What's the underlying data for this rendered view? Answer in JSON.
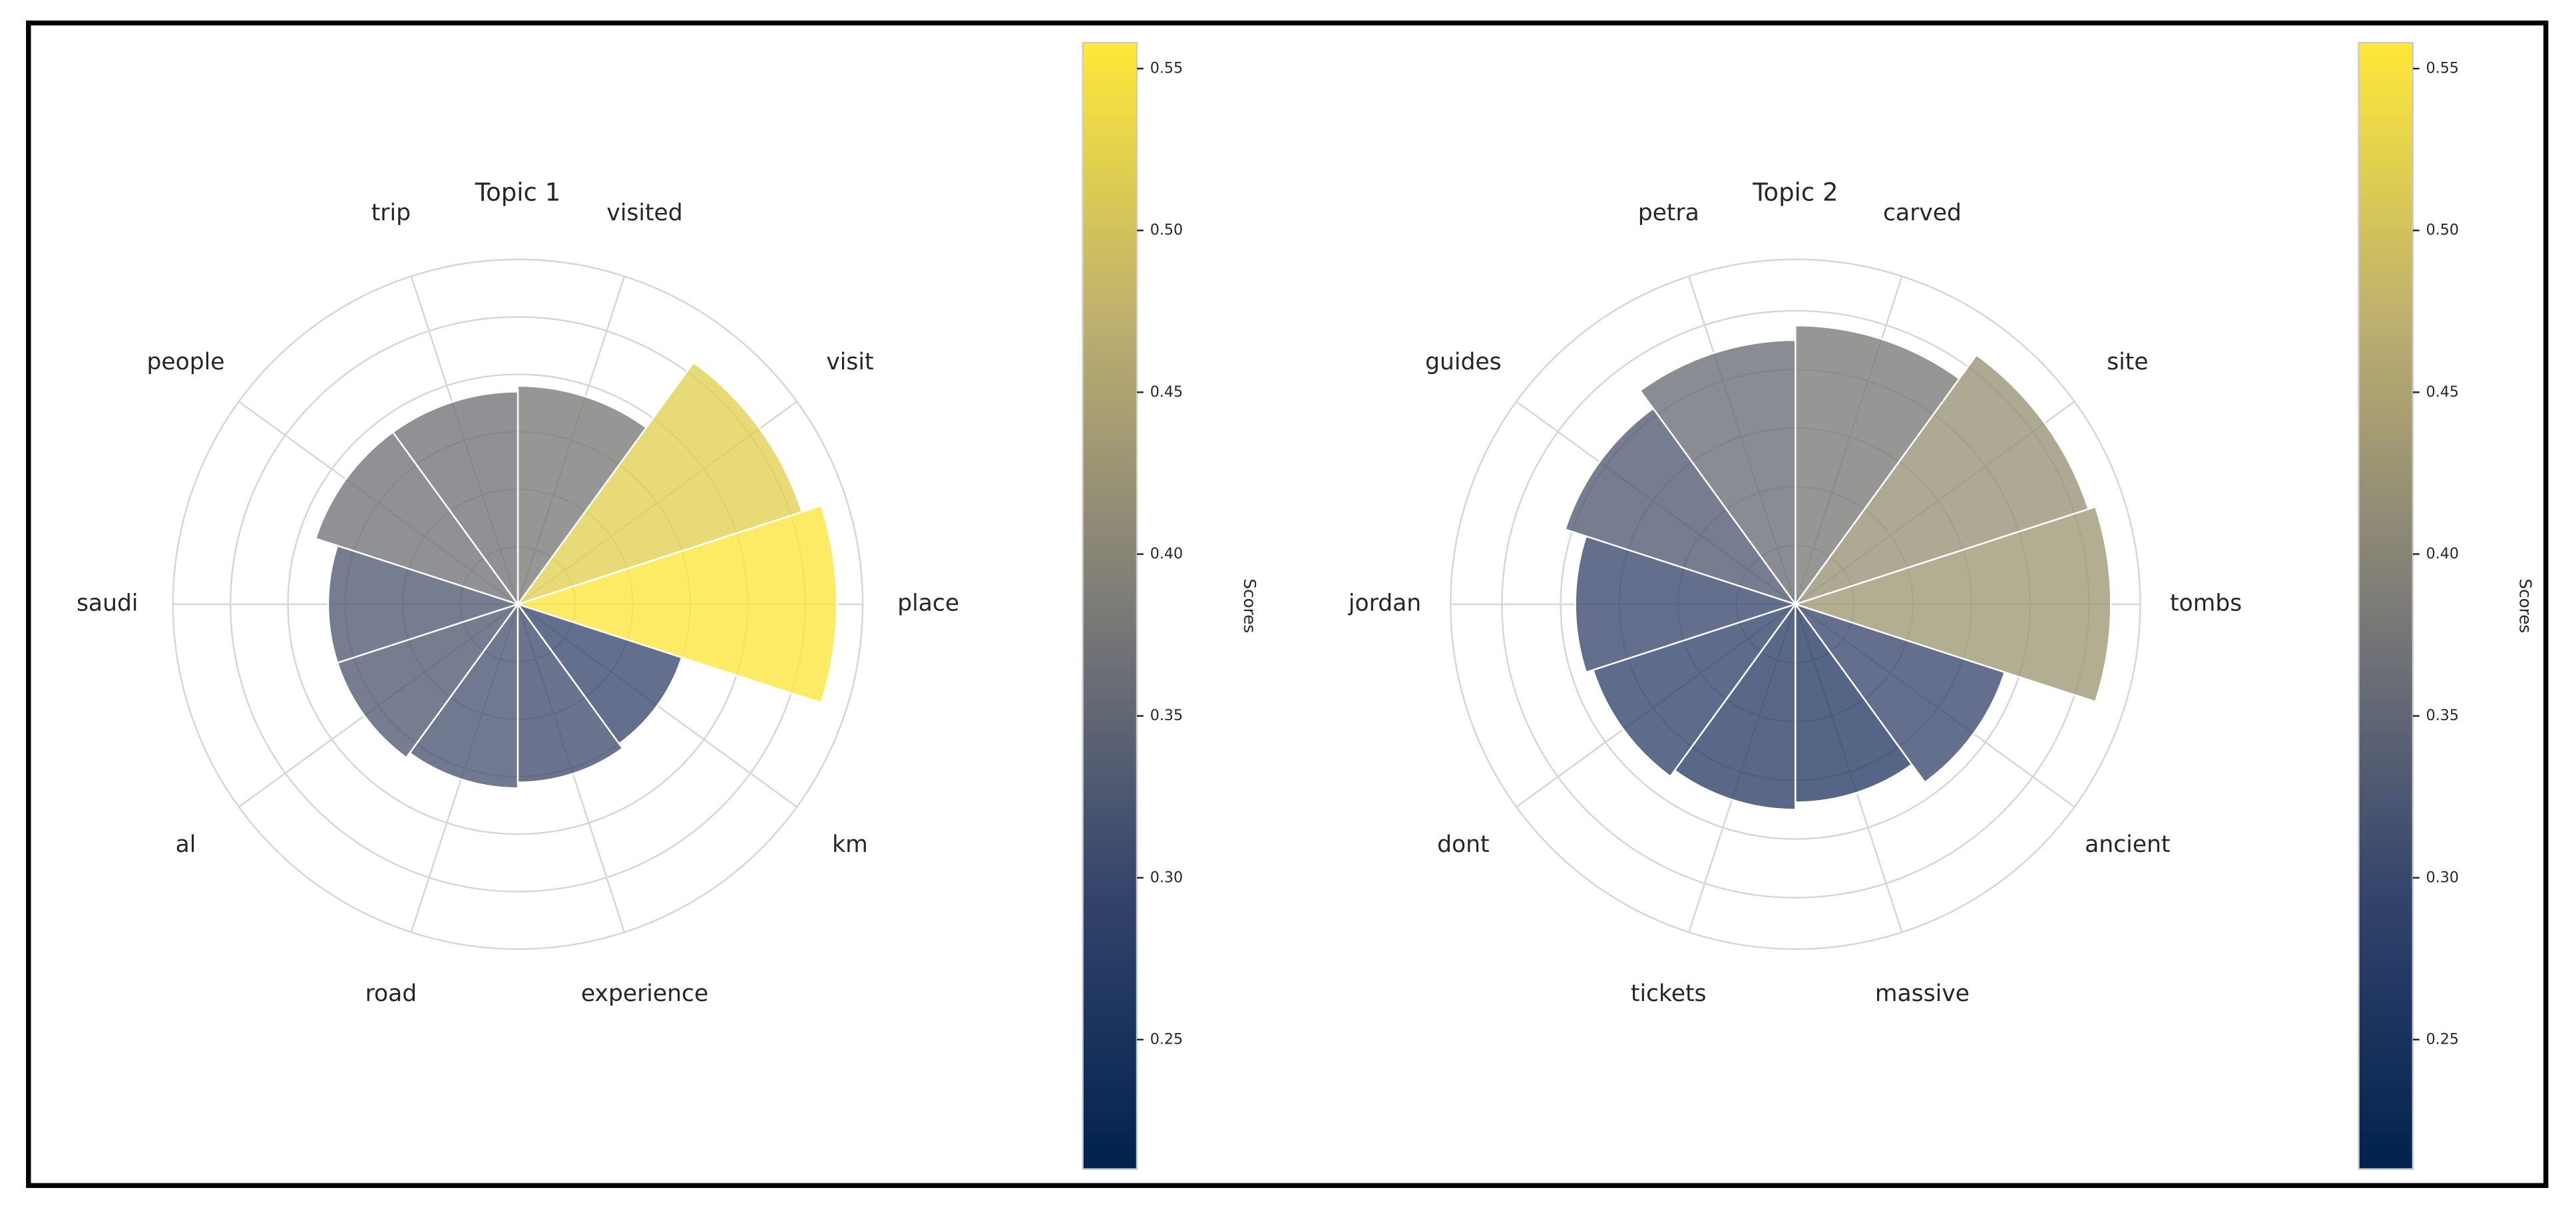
{
  "chart_data": [
    {
      "type": "polar_bar",
      "title": "Topic 1",
      "categories": [
        "place",
        "visit",
        "visited",
        "trip",
        "people",
        "saudi",
        "al",
        "road",
        "experience",
        "km"
      ],
      "values": [
        0.555,
        0.52,
        0.38,
        0.37,
        0.37,
        0.33,
        0.33,
        0.32,
        0.31,
        0.3
      ],
      "rlim": [
        0,
        0.6
      ],
      "rticks": [
        0.1,
        0.2,
        0.3,
        0.4,
        0.5,
        0.6
      ],
      "colorbar": {
        "label": "Scores",
        "lim": [
          0.21,
          0.558
        ],
        "ticks": [
          0.25,
          {
            "value": 0.3,
            "label": "0.30"
          },
          0.35,
          {
            "value": 0.4,
            "label": "0.40"
          },
          0.45,
          {
            "value": 0.5,
            "label": "0.50"
          },
          0.55
        ]
      }
    },
    {
      "type": "polar_bar",
      "title": "Topic 2",
      "categories": [
        "tombs",
        "site",
        "carved",
        "petra",
        "guides",
        "jordan",
        "dont",
        "tickets",
        "massive",
        "ancient"
      ],
      "values": [
        0.43,
        0.42,
        0.38,
        0.36,
        0.33,
        0.3,
        0.29,
        0.28,
        0.27,
        0.3
      ],
      "rlim": [
        0,
        0.47
      ],
      "rticks": [
        0.08,
        0.16,
        0.24,
        0.32,
        0.4,
        0.47
      ],
      "colorbar": {
        "label": "Scores",
        "lim": [
          0.21,
          0.558
        ],
        "ticks": [
          0.25,
          {
            "value": 0.3,
            "label": "0.30"
          },
          0.35,
          {
            "value": 0.4,
            "label": "0.40"
          },
          0.45,
          {
            "value": 0.5,
            "label": "0.50"
          },
          0.55
        ]
      }
    }
  ]
}
